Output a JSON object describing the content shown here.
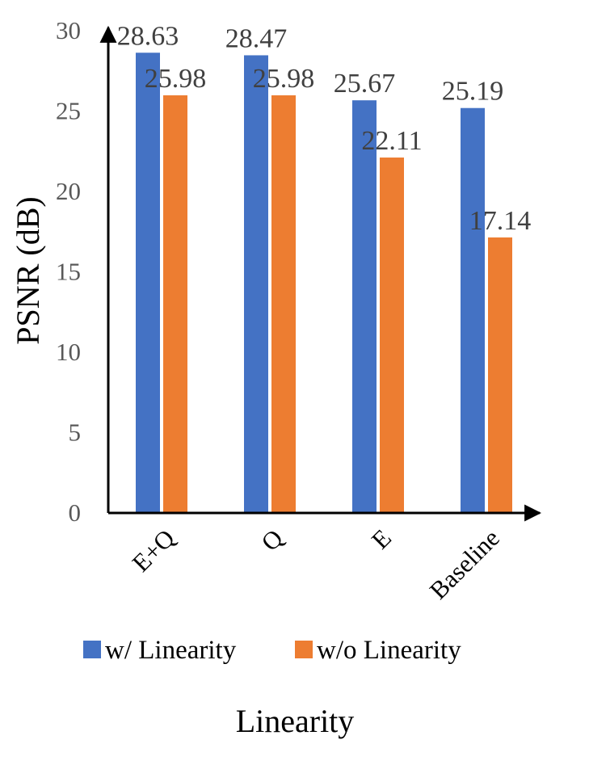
{
  "chart_data": {
    "type": "bar",
    "categories": [
      "E+Q",
      "Q",
      "E",
      "Baseline"
    ],
    "series": [
      {
        "name": "w/ Linearity",
        "values": [
          28.63,
          28.47,
          25.67,
          25.19
        ],
        "color": "#4472C4"
      },
      {
        "name": "w/o Linearity",
        "values": [
          25.98,
          25.98,
          22.11,
          17.14
        ],
        "color": "#ED7D31"
      }
    ],
    "data_labels": [
      [
        "28.63",
        "28.47",
        "25.67",
        "25.19"
      ],
      [
        "25.98",
        "25.98",
        "22.11",
        "17.14"
      ]
    ],
    "title": "",
    "xlabel": "Linearity",
    "ylabel": "PSNR (dB)",
    "ylim": [
      0,
      30
    ],
    "yticks": [
      0,
      5,
      10,
      15,
      20,
      25,
      30
    ],
    "ytick_labels": [
      "0",
      "5",
      "10",
      "15",
      "20",
      "25",
      "30"
    ],
    "grid": false,
    "legend_position": "bottom"
  }
}
